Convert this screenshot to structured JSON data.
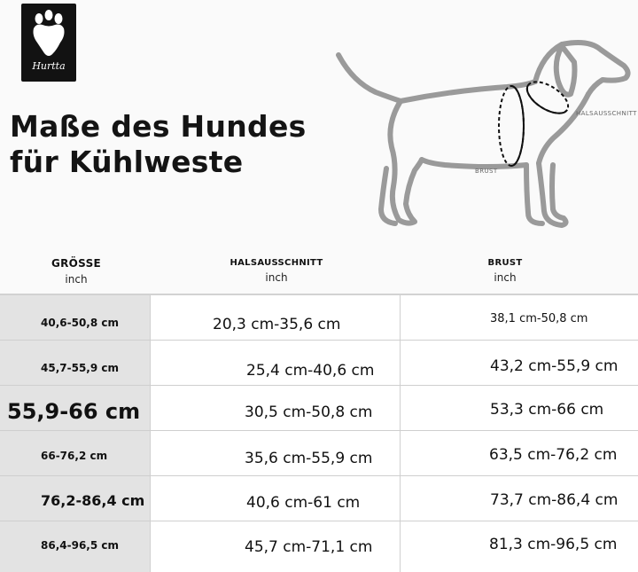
{
  "logo": {
    "text": "Hurtta"
  },
  "title": {
    "line1": "Maße des Hundes",
    "line2": "für Kühlweste"
  },
  "diagram": {
    "neck_label": "HALSAUSSCHNITT",
    "chest_label": "BRUST"
  },
  "headers": {
    "size": {
      "title": "GRÖSSE",
      "unit": "inch"
    },
    "neck": {
      "title": "HALSAUSSCHNITT",
      "unit": "inch"
    },
    "chest": {
      "title": "BRUST",
      "unit": "inch"
    }
  },
  "rows": [
    {
      "size": "40,6-50,8 cm",
      "neck": "20,3 cm-35,6 cm",
      "chest": "38,1 cm-50,8 cm"
    },
    {
      "size": "45,7-55,9 cm",
      "neck": "25,4 cm-40,6 cm",
      "chest": "43,2 cm-55,9 cm"
    },
    {
      "size": "55,9-66 cm",
      "neck": "30,5 cm-50,8 cm",
      "chest": "53,3 cm-66 cm"
    },
    {
      "size": "66-76,2 cm",
      "neck": "35,6 cm-55,9 cm",
      "chest": "63,5 cm-76,2 cm"
    },
    {
      "size": "76,2-86,4 cm",
      "neck": "40,6 cm-61 cm",
      "chest": "73,7 cm-86,4 cm"
    },
    {
      "size": "86,4-96,5 cm",
      "neck": "45,7 cm-71,1 cm",
      "chest": "81,3 cm-96,5 cm"
    }
  ]
}
